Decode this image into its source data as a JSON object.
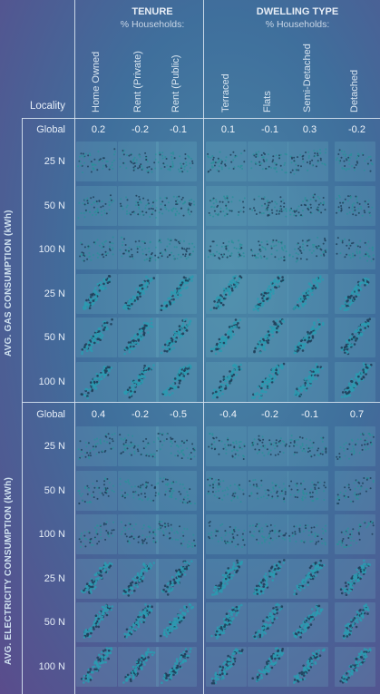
{
  "groups": {
    "tenure": {
      "title": "TENURE",
      "subtitle": "% Households:"
    },
    "dwelling": {
      "title": "DWELLING TYPE",
      "subtitle": "% Households:"
    }
  },
  "header": {
    "locality_label": "Locality",
    "columns": [
      "Home Owned",
      "Rent (Private)",
      "Rent (Public)",
      "Terraced",
      "Flats",
      "Semi-Detached",
      "Detached"
    ]
  },
  "sections": [
    {
      "label": "AVG. GAS  CONSUMPTION (kWh)",
      "global_label": "Global",
      "coefficients": [
        "0.2",
        "-0.2",
        "-0.1",
        "0.1",
        "-0.1",
        "0.3",
        "-0.2"
      ],
      "rows": [
        "25 N",
        "50 N",
        "100 N",
        "25 N",
        "50 N",
        "100 N"
      ],
      "row_kinds": [
        "scatter",
        "scatter",
        "scatter",
        "map",
        "map",
        "map"
      ]
    },
    {
      "label": "AVG. ELECTRICITY CONSUMPTION (kWh)",
      "global_label": "Global",
      "coefficients": [
        "0.4",
        "-0.2",
        "-0.5",
        "-0.4",
        "-0.2",
        "-0.1",
        "0.7"
      ],
      "rows": [
        "25 N",
        "50 N",
        "100 N",
        "25 N",
        "50 N",
        "100 N"
      ],
      "row_kinds": [
        "scatter",
        "scatter",
        "scatter",
        "map",
        "map",
        "map"
      ]
    }
  ],
  "colors": {
    "point_dark": "#1f3f5a",
    "point_teal": "#2a8f9a",
    "map_fill": "#2b9ab0",
    "frame": "#d7e3ef"
  }
}
